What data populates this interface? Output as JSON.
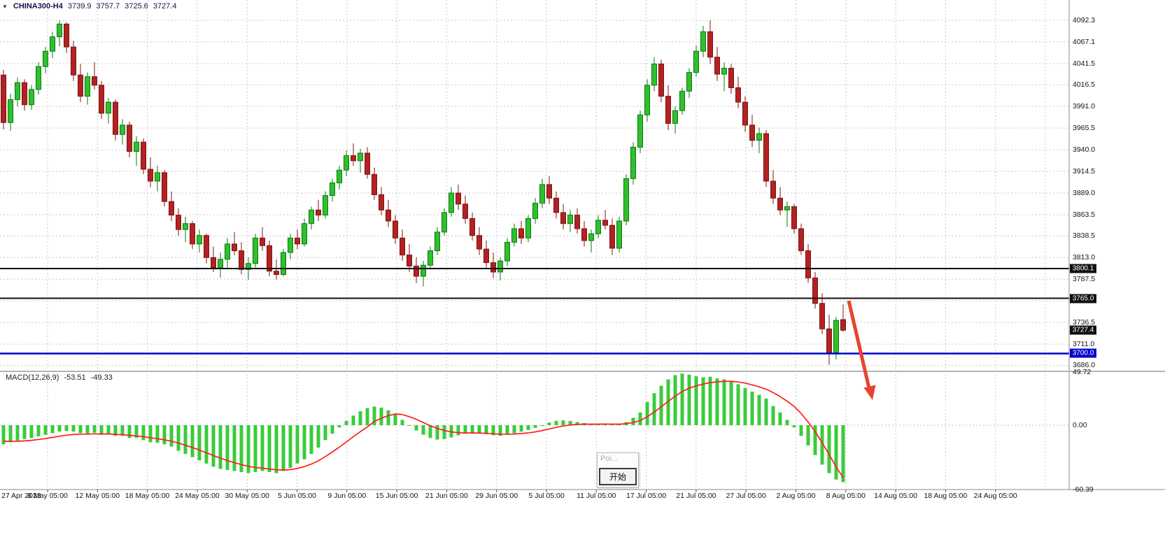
{
  "header": {
    "collapse_icon": "▼",
    "symbol_period": "CHINA300-H4",
    "open": "3739.9",
    "high": "3757.7",
    "low": "3725.6",
    "close": "3727.4"
  },
  "chart_data": {
    "type": "candlestick",
    "symbol": "CHINA300",
    "timeframe": "H4",
    "price_axis": {
      "ticks": [
        "4092.3",
        "4067.1",
        "4041.5",
        "4016.5",
        "3991.0",
        "3965.5",
        "3940.0",
        "3914.5",
        "3889.0",
        "3863.5",
        "3838.5",
        "3813.0",
        "3787.5",
        "3762.0",
        "3736.5",
        "3711.0",
        "3686.0"
      ]
    },
    "time_axis": {
      "labels": [
        "27 Apr 2023",
        "8 May 05:00",
        "12 May 05:00",
        "18 May 05:00",
        "24 May 05:00",
        "30 May 05:00",
        "5 Jun 05:00",
        "9 Jun 05:00",
        "15 Jun 05:00",
        "21 Jun 05:00",
        "29 Jun 05:00",
        "5 Jul 05:00",
        "11 Jul 05:00",
        "17 Jul 05:00",
        "21 Jul 05:00",
        "27 Jul 05:00",
        "2 Aug 05:00",
        "8 Aug 05:00",
        "14 Aug 05:00",
        "18 Aug 05:00",
        "24 Aug 05:00"
      ]
    },
    "candles": [
      [
        4028,
        4034,
        3964,
        3972
      ],
      [
        3972,
        4006,
        3962,
        3999
      ],
      [
        3999,
        4025,
        3991,
        4019
      ],
      [
        4019,
        4023,
        3986,
        3993
      ],
      [
        3993,
        4016,
        3987,
        4011
      ],
      [
        4011,
        4043,
        4005,
        4038
      ],
      [
        4038,
        4061,
        4030,
        4056
      ],
      [
        4056,
        4079,
        4048,
        4073
      ],
      [
        4073,
        4092.3,
        4062,
        4088
      ],
      [
        4088,
        4090,
        4054,
        4061
      ],
      [
        4061,
        4068,
        4021,
        4028
      ],
      [
        4028,
        4041,
        3996,
        4003
      ],
      [
        4003,
        4031,
        3993,
        4026
      ],
      [
        4026,
        4043,
        4011,
        4016
      ],
      [
        4016,
        4021,
        3976,
        3983
      ],
      [
        3983,
        4001,
        3971,
        3996
      ],
      [
        3996,
        3999,
        3951,
        3958
      ],
      [
        3958,
        3976,
        3946,
        3969
      ],
      [
        3969,
        3973,
        3931,
        3938
      ],
      [
        3938,
        3956,
        3921,
        3949
      ],
      [
        3949,
        3953,
        3911,
        3917
      ],
      [
        3917,
        3931,
        3896,
        3903
      ],
      [
        3903,
        3921,
        3891,
        3913
      ],
      [
        3913,
        3916,
        3873,
        3879
      ],
      [
        3879,
        3891,
        3856,
        3863
      ],
      [
        3863,
        3871,
        3839,
        3846
      ],
      [
        3846,
        3861,
        3831,
        3853
      ],
      [
        3853,
        3856,
        3823,
        3829
      ],
      [
        3829,
        3846,
        3819,
        3839
      ],
      [
        3839,
        3841,
        3806,
        3813
      ],
      [
        3813,
        3826,
        3796,
        3801
      ],
      [
        3801,
        3819,
        3789,
        3811
      ],
      [
        3811,
        3836,
        3801,
        3829
      ],
      [
        3829,
        3843,
        3816,
        3821
      ],
      [
        3821,
        3831,
        3793,
        3799
      ],
      [
        3799,
        3813,
        3787,
        3806
      ],
      [
        3806,
        3841,
        3799,
        3836
      ],
      [
        3836,
        3849,
        3821,
        3827
      ],
      [
        3827,
        3833,
        3791,
        3797
      ],
      [
        3797,
        3811,
        3787,
        3793
      ],
      [
        3793,
        3823,
        3791,
        3819
      ],
      [
        3819,
        3841,
        3811,
        3836
      ],
      [
        3836,
        3846,
        3823,
        3829
      ],
      [
        3829,
        3859,
        3826,
        3853
      ],
      [
        3853,
        3873,
        3846,
        3869
      ],
      [
        3869,
        3881,
        3856,
        3863
      ],
      [
        3863,
        3891,
        3859,
        3886
      ],
      [
        3886,
        3906,
        3879,
        3901
      ],
      [
        3901,
        3921,
        3893,
        3916
      ],
      [
        3916,
        3939,
        3909,
        3933
      ],
      [
        3933,
        3947.5,
        3921,
        3927
      ],
      [
        3927,
        3941,
        3913,
        3936
      ],
      [
        3936,
        3943,
        3906,
        3911
      ],
      [
        3911,
        3919,
        3881,
        3887
      ],
      [
        3887,
        3896,
        3863,
        3869
      ],
      [
        3869,
        3881,
        3849,
        3856
      ],
      [
        3856,
        3863,
        3829,
        3836
      ],
      [
        3836,
        3846,
        3809,
        3816
      ],
      [
        3816,
        3829,
        3796,
        3803
      ],
      [
        3803,
        3813,
        3783,
        3791
      ],
      [
        3791,
        3809,
        3779,
        3804
      ],
      [
        3804,
        3826,
        3799,
        3821
      ],
      [
        3821,
        3849,
        3816,
        3843
      ],
      [
        3843,
        3871,
        3839,
        3866
      ],
      [
        3866,
        3896,
        3861,
        3889
      ],
      [
        3889,
        3899,
        3869,
        3876
      ],
      [
        3876,
        3886,
        3853,
        3859
      ],
      [
        3859,
        3866,
        3833,
        3839
      ],
      [
        3839,
        3849,
        3816,
        3823
      ],
      [
        3823,
        3833,
        3801,
        3807
      ],
      [
        3807,
        3819,
        3789,
        3796
      ],
      [
        3796,
        3813,
        3786,
        3809
      ],
      [
        3809,
        3836,
        3803,
        3831
      ],
      [
        3831,
        3853,
        3826,
        3847
      ],
      [
        3847,
        3856,
        3829,
        3836
      ],
      [
        3836,
        3863,
        3831,
        3859
      ],
      [
        3859,
        3883,
        3853,
        3877
      ],
      [
        3877,
        3906,
        3871,
        3899
      ],
      [
        3899,
        3909,
        3876,
        3883
      ],
      [
        3883,
        3891,
        3859,
        3866
      ],
      [
        3866,
        3876,
        3846,
        3853
      ],
      [
        3853,
        3869,
        3843,
        3863
      ],
      [
        3863,
        3871,
        3841,
        3847
      ],
      [
        3847,
        3856,
        3826,
        3833
      ],
      [
        3833,
        3846,
        3819,
        3841
      ],
      [
        3841,
        3863,
        3836,
        3857
      ],
      [
        3857,
        3869,
        3846,
        3851
      ],
      [
        3851,
        3859,
        3816,
        3824
      ],
      [
        3824,
        3861,
        3819,
        3856
      ],
      [
        3856,
        3911,
        3851,
        3906
      ],
      [
        3906,
        3949,
        3899,
        3943
      ],
      [
        3943,
        3986,
        3936,
        3981
      ],
      [
        3981,
        4023,
        3973,
        4016
      ],
      [
        4016,
        4049,
        4009,
        4041
      ],
      [
        4041,
        4046,
        3996,
        4003
      ],
      [
        4003,
        4016,
        3963,
        3971
      ],
      [
        3971,
        3991,
        3959,
        3986
      ],
      [
        3986,
        4013,
        3981,
        4009
      ],
      [
        4009,
        4036,
        4001,
        4031
      ],
      [
        4031,
        4063,
        4026,
        4056
      ],
      [
        4056,
        4086,
        4049,
        4079
      ],
      [
        4079,
        4092.3,
        4041,
        4049
      ],
      [
        4049,
        4061,
        4021,
        4029
      ],
      [
        4029,
        4043,
        4009,
        4036
      ],
      [
        4036,
        4041,
        4006,
        4013
      ],
      [
        4013,
        4026,
        3989,
        3996
      ],
      [
        3996,
        4003,
        3961,
        3969
      ],
      [
        3969,
        3981,
        3943,
        3951
      ],
      [
        3951,
        3966,
        3936,
        3959
      ],
      [
        3959,
        3963,
        3896,
        3903
      ],
      [
        3903,
        3916,
        3876,
        3883
      ],
      [
        3883,
        3896,
        3863,
        3869
      ],
      [
        3869,
        3879,
        3849,
        3873
      ],
      [
        3873,
        3876,
        3841,
        3847
      ],
      [
        3847,
        3853,
        3816,
        3821
      ],
      [
        3821,
        3829,
        3783,
        3789
      ],
      [
        3789,
        3796,
        3753,
        3759
      ],
      [
        3759,
        3771,
        3723,
        3729
      ],
      [
        3729,
        3746,
        3686.8,
        3701
      ],
      [
        3701,
        3743,
        3693,
        3739
      ],
      [
        3739.9,
        3757.7,
        3725.6,
        3727.4
      ]
    ],
    "levels": [
      {
        "value": 3800.1,
        "label": "3800.1",
        "color": "#101010",
        "tag_bg": "#101010",
        "width": 2
      },
      {
        "value": 3765.0,
        "label": "3765.0",
        "color": "#101010",
        "tag_bg": "#101010",
        "width": 2
      },
      {
        "value": 3700.0,
        "label": "3700.0",
        "color": "#0000cd",
        "tag_bg": "#0000cd",
        "width": 2.5
      }
    ],
    "current_price": {
      "value": 3727.4,
      "label": "3727.4",
      "tag_bg": "#101010"
    },
    "macd": {
      "name": "MACD(12,26,9)",
      "main_value": "-53.51",
      "signal_value": "-49.33",
      "ylim": [
        -60.39,
        49.72
      ],
      "axis_labels": [
        {
          "value": 49.72,
          "text": "49.72"
        },
        {
          "value": 0,
          "text": "0.00"
        },
        {
          "value": -60.39,
          "text": "-60.39"
        }
      ],
      "histogram": [
        -18,
        -16,
        -14.5,
        -13,
        -12,
        -10.5,
        -9,
        -7.5,
        -6,
        -5.5,
        -6,
        -7.5,
        -8,
        -7,
        -9,
        -8,
        -10,
        -10,
        -12,
        -12,
        -14,
        -16,
        -16.5,
        -18,
        -20,
        -24,
        -27,
        -30,
        -33,
        -36,
        -39,
        -41,
        -42,
        -43,
        -44,
        -45,
        -44,
        -43,
        -44,
        -45,
        -43,
        -40,
        -36,
        -32,
        -27,
        -21,
        -14,
        -8,
        -2,
        4,
        9,
        13,
        16,
        17.5,
        16.5,
        14,
        10,
        5,
        0,
        -5,
        -9,
        -12,
        -13.5,
        -13,
        -11.5,
        -9.5,
        -8,
        -7,
        -7.5,
        -8.5,
        -9.5,
        -10,
        -9,
        -7.5,
        -6,
        -4.5,
        -2.5,
        0,
        2.5,
        4,
        4.5,
        4,
        3,
        2,
        1,
        1,
        1.5,
        0.5,
        1,
        3,
        7,
        12,
        22,
        30,
        37,
        43,
        47,
        48.5,
        47.5,
        46,
        45,
        45.5,
        44,
        43,
        41,
        38.5,
        35,
        31.5,
        28.5,
        25,
        18,
        12,
        5,
        -2,
        -10,
        -19,
        -28,
        -37,
        -45,
        -51,
        -53.51
      ],
      "signal": [
        -15,
        -15.2,
        -15.1,
        -14.7,
        -14.2,
        -13.4,
        -12.5,
        -11.5,
        -10.4,
        -9.4,
        -8.7,
        -8.5,
        -8.4,
        -8.1,
        -8.3,
        -8.2,
        -8.6,
        -8.9,
        -9.5,
        -10,
        -10.8,
        -11.8,
        -12.7,
        -13.8,
        -15,
        -16.8,
        -18.8,
        -21,
        -23.4,
        -25.9,
        -28.5,
        -31,
        -33.2,
        -35.2,
        -37,
        -38.6,
        -39.7,
        -40.4,
        -41.1,
        -41.9,
        -42.1,
        -41.7,
        -40.6,
        -38.9,
        -36.5,
        -33.4,
        -29.5,
        -25.2,
        -20.6,
        -15.7,
        -10.8,
        -6,
        -1.6,
        3.5,
        6.5,
        9,
        10.5,
        10,
        8,
        5.5,
        2.5,
        -0.5,
        -3,
        -5,
        -6.3,
        -7,
        -7.3,
        -7.3,
        -7.4,
        -7.6,
        -8,
        -8.4,
        -8.5,
        -8.3,
        -7.8,
        -7.2,
        -6.3,
        -5,
        -3.5,
        -2,
        -0.7,
        0.2,
        0.8,
        1,
        1,
        1,
        1.1,
        1,
        1,
        1.4,
        2.5,
        4.4,
        7.9,
        12.3,
        17.3,
        22.4,
        27.3,
        31.6,
        34.8,
        37,
        38.6,
        40,
        40.8,
        41.2,
        41.2,
        40.6,
        39.5,
        37.9,
        36,
        33.8,
        30.6,
        26.9,
        22.5,
        17.6,
        11,
        3,
        -6,
        -16.5,
        -27.5,
        -39,
        -49.33
      ],
      "histogram_color": "#3bcb3b",
      "signal_color": "#ff1e1e"
    }
  },
  "annotations": {
    "arrow": {
      "color": "#e8432e"
    },
    "popup": {
      "title": "Poi...",
      "button_label": "开始"
    }
  },
  "colors": {
    "up_fill": "#2fbf2f",
    "up_stroke": "#0c7a0c",
    "down_fill": "#b22222",
    "down_stroke": "#801313",
    "grid": "#c9c9c9",
    "frame": "#8a8a8a",
    "separator": "#b4b4b4",
    "axis_text": "#141414",
    "background": "#ffffff"
  }
}
